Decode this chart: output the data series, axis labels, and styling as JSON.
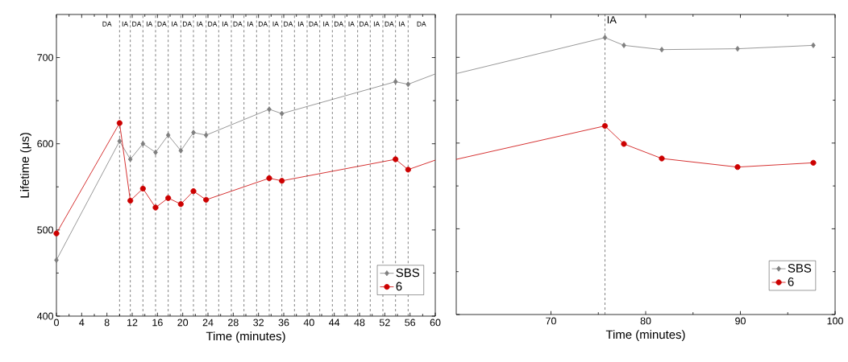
{
  "chart_data": [
    {
      "type": "line",
      "xlabel": "Time (minutes)",
      "ylabel": "Lifetime (μs)",
      "xlim": [
        0,
        60
      ],
      "ylim": [
        400,
        750
      ],
      "xticks": [
        0,
        4,
        8,
        12,
        16,
        20,
        24,
        28,
        32,
        36,
        40,
        44,
        48,
        52,
        56,
        60
      ],
      "yticks": [
        400,
        500,
        600,
        700
      ],
      "legend": "bottom right",
      "series": [
        {
          "name": "SBS",
          "color": "#7f7f7f",
          "marker": "diamond",
          "x": [
            0,
            10,
            11.7,
            13.7,
            15.7,
            17.7,
            19.7,
            21.7,
            23.7,
            33.7,
            35.7,
            53.7,
            55.7,
            60
          ],
          "values": [
            465,
            603,
            582,
            600,
            590,
            610,
            592,
            613,
            610,
            640,
            635,
            672,
            669,
            681
          ]
        },
        {
          "name": "6",
          "color": "#cc0000",
          "marker": "circle",
          "x": [
            0,
            10,
            11.7,
            13.7,
            15.7,
            17.7,
            19.7,
            21.7,
            23.7,
            33.7,
            35.7,
            53.7,
            55.7,
            60
          ],
          "values": [
            496,
            624,
            534,
            548,
            526,
            537,
            530,
            545,
            535,
            560,
            557,
            582,
            570,
            581
          ]
        }
      ],
      "ref_lines": [
        {
          "axis": "x",
          "value": 10,
          "line_style": "dashed"
        },
        {
          "axis": "x",
          "value": 11.7,
          "line_style": "dashed"
        },
        {
          "axis": "x",
          "value": 13.7,
          "line_style": "dashed"
        },
        {
          "axis": "x",
          "value": 15.7,
          "line_style": "dashed"
        },
        {
          "axis": "x",
          "value": 17.7,
          "line_style": "dashed"
        },
        {
          "axis": "x",
          "value": 19.7,
          "line_style": "dashed"
        },
        {
          "axis": "x",
          "value": 21.7,
          "line_style": "dashed"
        },
        {
          "axis": "x",
          "value": 23.7,
          "line_style": "dashed"
        },
        {
          "axis": "x",
          "value": 25.7,
          "line_style": "dashed"
        },
        {
          "axis": "x",
          "value": 27.7,
          "line_style": "dashed"
        },
        {
          "axis": "x",
          "value": 29.7,
          "line_style": "dashed"
        },
        {
          "axis": "x",
          "value": 31.7,
          "line_style": "dashed"
        },
        {
          "axis": "x",
          "value": 33.7,
          "line_style": "dashed"
        },
        {
          "axis": "x",
          "value": 35.7,
          "line_style": "dashed"
        },
        {
          "axis": "x",
          "value": 37.7,
          "line_style": "dashed"
        },
        {
          "axis": "x",
          "value": 39.7,
          "line_style": "dashed"
        },
        {
          "axis": "x",
          "value": 41.7,
          "line_style": "dashed"
        },
        {
          "axis": "x",
          "value": 43.7,
          "line_style": "dashed"
        },
        {
          "axis": "x",
          "value": 45.7,
          "line_style": "dashed"
        },
        {
          "axis": "x",
          "value": 47.7,
          "line_style": "dashed"
        },
        {
          "axis": "x",
          "value": 49.7,
          "line_style": "dashed"
        },
        {
          "axis": "x",
          "value": 51.7,
          "line_style": "dashed"
        },
        {
          "axis": "x",
          "value": 53.7,
          "line_style": "dashed"
        },
        {
          "axis": "x",
          "value": 55.7,
          "line_style": "dashed"
        }
      ],
      "annotations": [
        {
          "text": "DA",
          "x": 8,
          "y": 739
        },
        {
          "text": "IA",
          "x": 10.85,
          "y": 739
        },
        {
          "text": "DA",
          "x": 12.7,
          "y": 739
        },
        {
          "text": "IA",
          "x": 14.7,
          "y": 739
        },
        {
          "text": "DA",
          "x": 16.7,
          "y": 739
        },
        {
          "text": "IA",
          "x": 18.7,
          "y": 739
        },
        {
          "text": "DA",
          "x": 20.7,
          "y": 739
        },
        {
          "text": "IA",
          "x": 22.7,
          "y": 739
        },
        {
          "text": "DA",
          "x": 24.7,
          "y": 739
        },
        {
          "text": "IA",
          "x": 26.7,
          "y": 739
        },
        {
          "text": "DA",
          "x": 28.7,
          "y": 739
        },
        {
          "text": "IA",
          "x": 30.7,
          "y": 739
        },
        {
          "text": "DA",
          "x": 32.7,
          "y": 739
        },
        {
          "text": "IA",
          "x": 34.7,
          "y": 739
        },
        {
          "text": "DA",
          "x": 36.7,
          "y": 739
        },
        {
          "text": "IA",
          "x": 38.7,
          "y": 739
        },
        {
          "text": "DA",
          "x": 40.7,
          "y": 739
        },
        {
          "text": "IA",
          "x": 42.7,
          "y": 739
        },
        {
          "text": "DA",
          "x": 44.7,
          "y": 739
        },
        {
          "text": "IA",
          "x": 46.7,
          "y": 739
        },
        {
          "text": "DA",
          "x": 48.7,
          "y": 739
        },
        {
          "text": "IA",
          "x": 50.7,
          "y": 739
        },
        {
          "text": "DA",
          "x": 52.7,
          "y": 739
        },
        {
          "text": "IA",
          "x": 54.7,
          "y": 739
        },
        {
          "text": "DA",
          "x": 57.8,
          "y": 739
        }
      ]
    },
    {
      "type": "line",
      "xlabel": "Time (minutes)",
      "xlim": [
        60,
        100
      ],
      "ylim": [
        400,
        750
      ],
      "xticks": [
        70,
        80,
        90,
        100
      ],
      "yticks": [
        {
          "value": 400,
          "label": null
        },
        {
          "value": 500,
          "label": null
        },
        {
          "value": 600,
          "label": null
        },
        {
          "value": 700,
          "label": null
        }
      ],
      "tick_labels": "x",
      "legend": "bottom right",
      "series": [
        {
          "name": "SBS",
          "color": "#7f7f7f",
          "marker": "diamond",
          "x": [
            60,
            75.7,
            77.7,
            81.7,
            89.7,
            97.7
          ],
          "values": [
            681,
            723,
            714,
            709,
            710,
            714
          ]
        },
        {
          "name": "6",
          "color": "#cc0000",
          "marker": "circle",
          "x": [
            60,
            75.7,
            77.7,
            81.7,
            89.7,
            97.7
          ],
          "values": [
            581,
            620,
            599,
            582,
            572,
            577
          ]
        }
      ],
      "ref_lines": [
        {
          "axis": "x",
          "value": 75.7,
          "label": "IA",
          "line_style": "dashed"
        }
      ]
    }
  ]
}
